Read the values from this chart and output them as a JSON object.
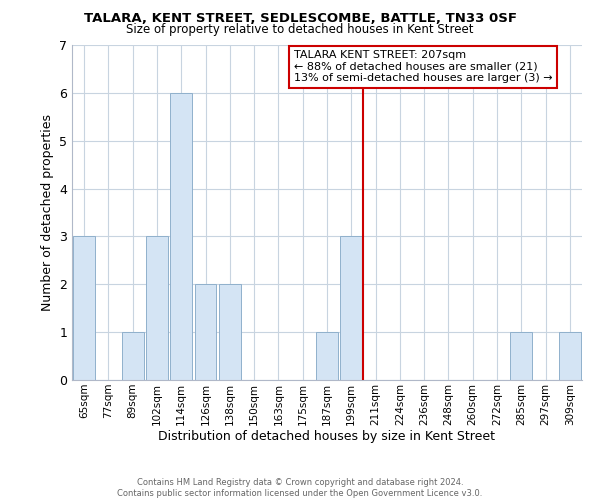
{
  "title": "TALARA, KENT STREET, SEDLESCOMBE, BATTLE, TN33 0SF",
  "subtitle": "Size of property relative to detached houses in Kent Street",
  "xlabel": "Distribution of detached houses by size in Kent Street",
  "ylabel": "Number of detached properties",
  "bin_labels": [
    "65sqm",
    "77sqm",
    "89sqm",
    "102sqm",
    "114sqm",
    "126sqm",
    "138sqm",
    "150sqm",
    "163sqm",
    "175sqm",
    "187sqm",
    "199sqm",
    "211sqm",
    "224sqm",
    "236sqm",
    "248sqm",
    "260sqm",
    "272sqm",
    "285sqm",
    "297sqm",
    "309sqm"
  ],
  "bar_heights": [
    3,
    0,
    1,
    3,
    6,
    2,
    2,
    0,
    0,
    0,
    1,
    3,
    0,
    0,
    0,
    0,
    0,
    0,
    1,
    0,
    1
  ],
  "bar_color": "#d4e4f4",
  "bar_edgecolor": "#90b0cc",
  "vline_x": 11.5,
  "vline_color": "#cc0000",
  "ylim": [
    0,
    7
  ],
  "yticks": [
    0,
    1,
    2,
    3,
    4,
    5,
    6,
    7
  ],
  "annotation_title": "TALARA KENT STREET: 207sqm",
  "annotation_line1": "← 88% of detached houses are smaller (21)",
  "annotation_line2": "13% of semi-detached houses are larger (3) →",
  "annotation_box_color": "#ffffff",
  "annotation_box_edgecolor": "#cc0000",
  "footer_line1": "Contains HM Land Registry data © Crown copyright and database right 2024.",
  "footer_line2": "Contains public sector information licensed under the Open Government Licence v3.0.",
  "background_color": "#ffffff",
  "grid_color": "#c8d4e0"
}
